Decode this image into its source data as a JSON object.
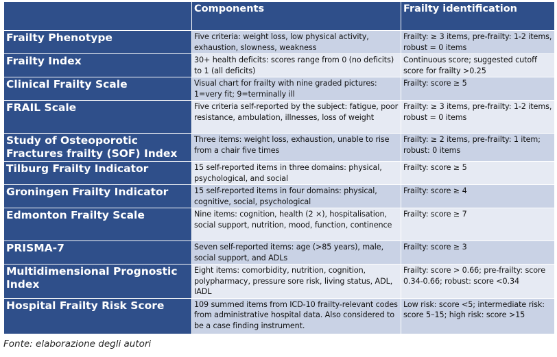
{
  "table": {
    "header": {
      "col1": "",
      "col2": "Components",
      "col3": "Frailty identification"
    },
    "rows": [
      {
        "name": "Frailty Phenotype",
        "components": "Five criteria: weight loss, low physical activity, exhaustion, slowness, weakness",
        "identification": "Frailty: ≥ 3 items, pre-frailty: 1-2 items, robust = 0 items"
      },
      {
        "name": "Frailty Index",
        "components": "30+ health deficits: scores range from 0 (no deficits) to 1 (all deficits)",
        "identification": "Continuous score; suggested cutoff score for frailty >0.25"
      },
      {
        "name": "Clinical Frailty Scale",
        "components": "Visual chart for frailty with nine graded pictures: 1=very fit; 9=terminally ill",
        "identification": "Frailty: score ≥ 5"
      },
      {
        "name": "FRAIL Scale",
        "components": "Five criteria self-reported by the subject: fatigue, poor resistance, ambulation, illnesses, loss of weight",
        "identification": "Frailty: ≥ 3 items, pre-frailty: 1-2 items, robust = 0 items"
      },
      {
        "name": "Study of Osteoporotic Fractures frailty (SOF) Index",
        "components": "Three items: weight loss, exhaustion, unable to rise from a chair five times",
        "identification": "Frailty: ≥ 2 items, pre-frailty: 1 item; robust: 0 items"
      },
      {
        "name": "Tilburg Frailty Indicator",
        "components": "15 self-reported items in three domains: physical, psychological, and social",
        "identification": "Frailty: score ≥ 5"
      },
      {
        "name": "Groningen Frailty Indicator",
        "components": "15 self-reported items in four domains: physical, cognitive, social, psychological",
        "identification": "Frailty: score ≥ 4"
      },
      {
        "name": "Edmonton Frailty Scale",
        "components": "Nine items: cognition, health (2 ×), hospitalisation, social support, nutrition, mood, function, continence",
        "identification": "Frailty: score ≥ 7"
      },
      {
        "name": "PRISMA-7",
        "components": "Seven self-reported items: age (>85 years), male, social support, and ADLs",
        "identification": "Frailty: score ≥ 3"
      },
      {
        "name": "Multidimensional Prognostic Index",
        "components": "Eight items: comorbidity, nutrition, cognition, polypharmacy, pressure sore risk, living status, ADL, IADL",
        "identification": "Frailty: score > 0.66; pre-frailty: score 0.34-0.66; robust: score <0.34"
      },
      {
        "name": "Hospital Frailty Risk Score",
        "components": "109 summed items from ICD-10 frailty-relevant codes from administrative hospital data. Also considered to be a case finding instrument.",
        "identification": "Low risk: score <5; intermediate risk: score 5–15; high risk: score >15"
      }
    ]
  },
  "source": "Fonte: elaborazione degli autori"
}
